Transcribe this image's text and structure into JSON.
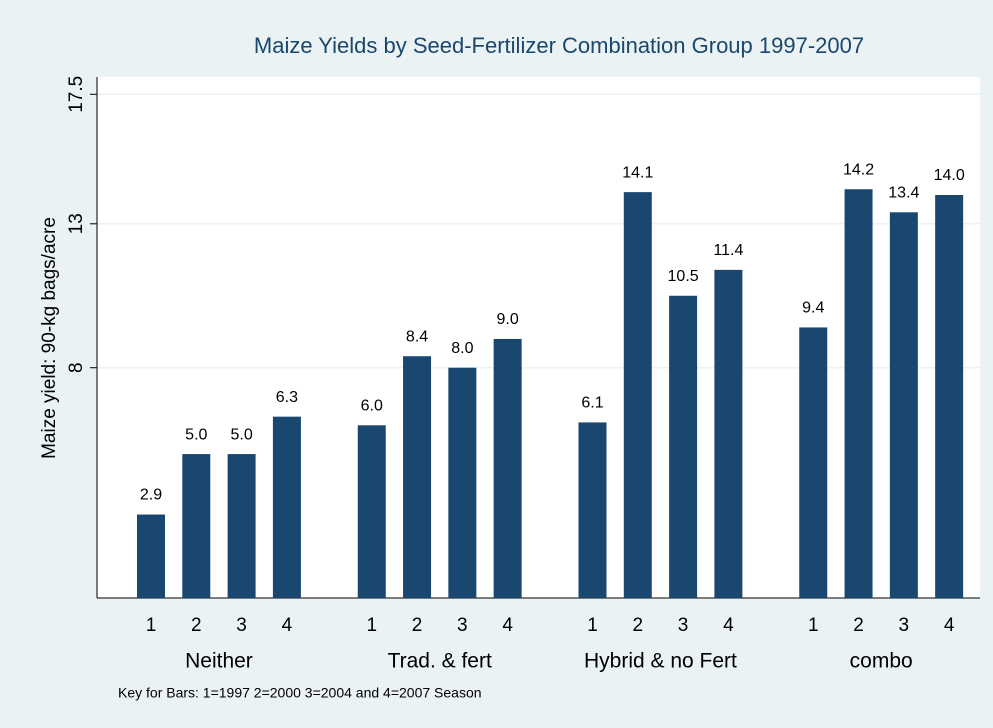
{
  "chart_data": {
    "type": "grouped-bar",
    "title": "Maize Yields by Seed-Fertilizer Combination Group 1997-2007",
    "y_label": "Maize yield: 90-kg bags/acre",
    "note": "Key for Bars: 1=1997 2=2000 3=2004 and 4=2007 Season",
    "color": "#1a476f",
    "ylim": [
      0,
      18.1
    ],
    "yticks": [
      8,
      13,
      17.5
    ],
    "grid": true,
    "groups": [
      {
        "name": "Neither",
        "labels": [
          "1",
          "2",
          "3",
          "4"
        ],
        "values": [
          2.9,
          5.0,
          5.0,
          6.3
        ],
        "value_labels": [
          "2.9",
          "5.0",
          "5.0",
          "6.3"
        ]
      },
      {
        "name": "Trad. & fert",
        "labels": [
          "1",
          "2",
          "3",
          "4"
        ],
        "values": [
          6.0,
          8.4,
          8.0,
          9.0
        ],
        "value_labels": [
          "6.0",
          "8.4",
          "8.0",
          "9.0"
        ]
      },
      {
        "name": "Hybrid & no Fert",
        "labels": [
          "1",
          "2",
          "3",
          "4"
        ],
        "values": [
          6.1,
          14.1,
          10.5,
          11.4
        ],
        "value_labels": [
          "6.1",
          "14.1",
          "10.5",
          "11.4"
        ]
      },
      {
        "name": "combo",
        "labels": [
          "1",
          "2",
          "3",
          "4"
        ],
        "values": [
          9.4,
          14.2,
          13.4,
          14.0
        ],
        "value_labels": [
          "9.4",
          "14.2",
          "13.4",
          "14.0"
        ]
      }
    ]
  }
}
